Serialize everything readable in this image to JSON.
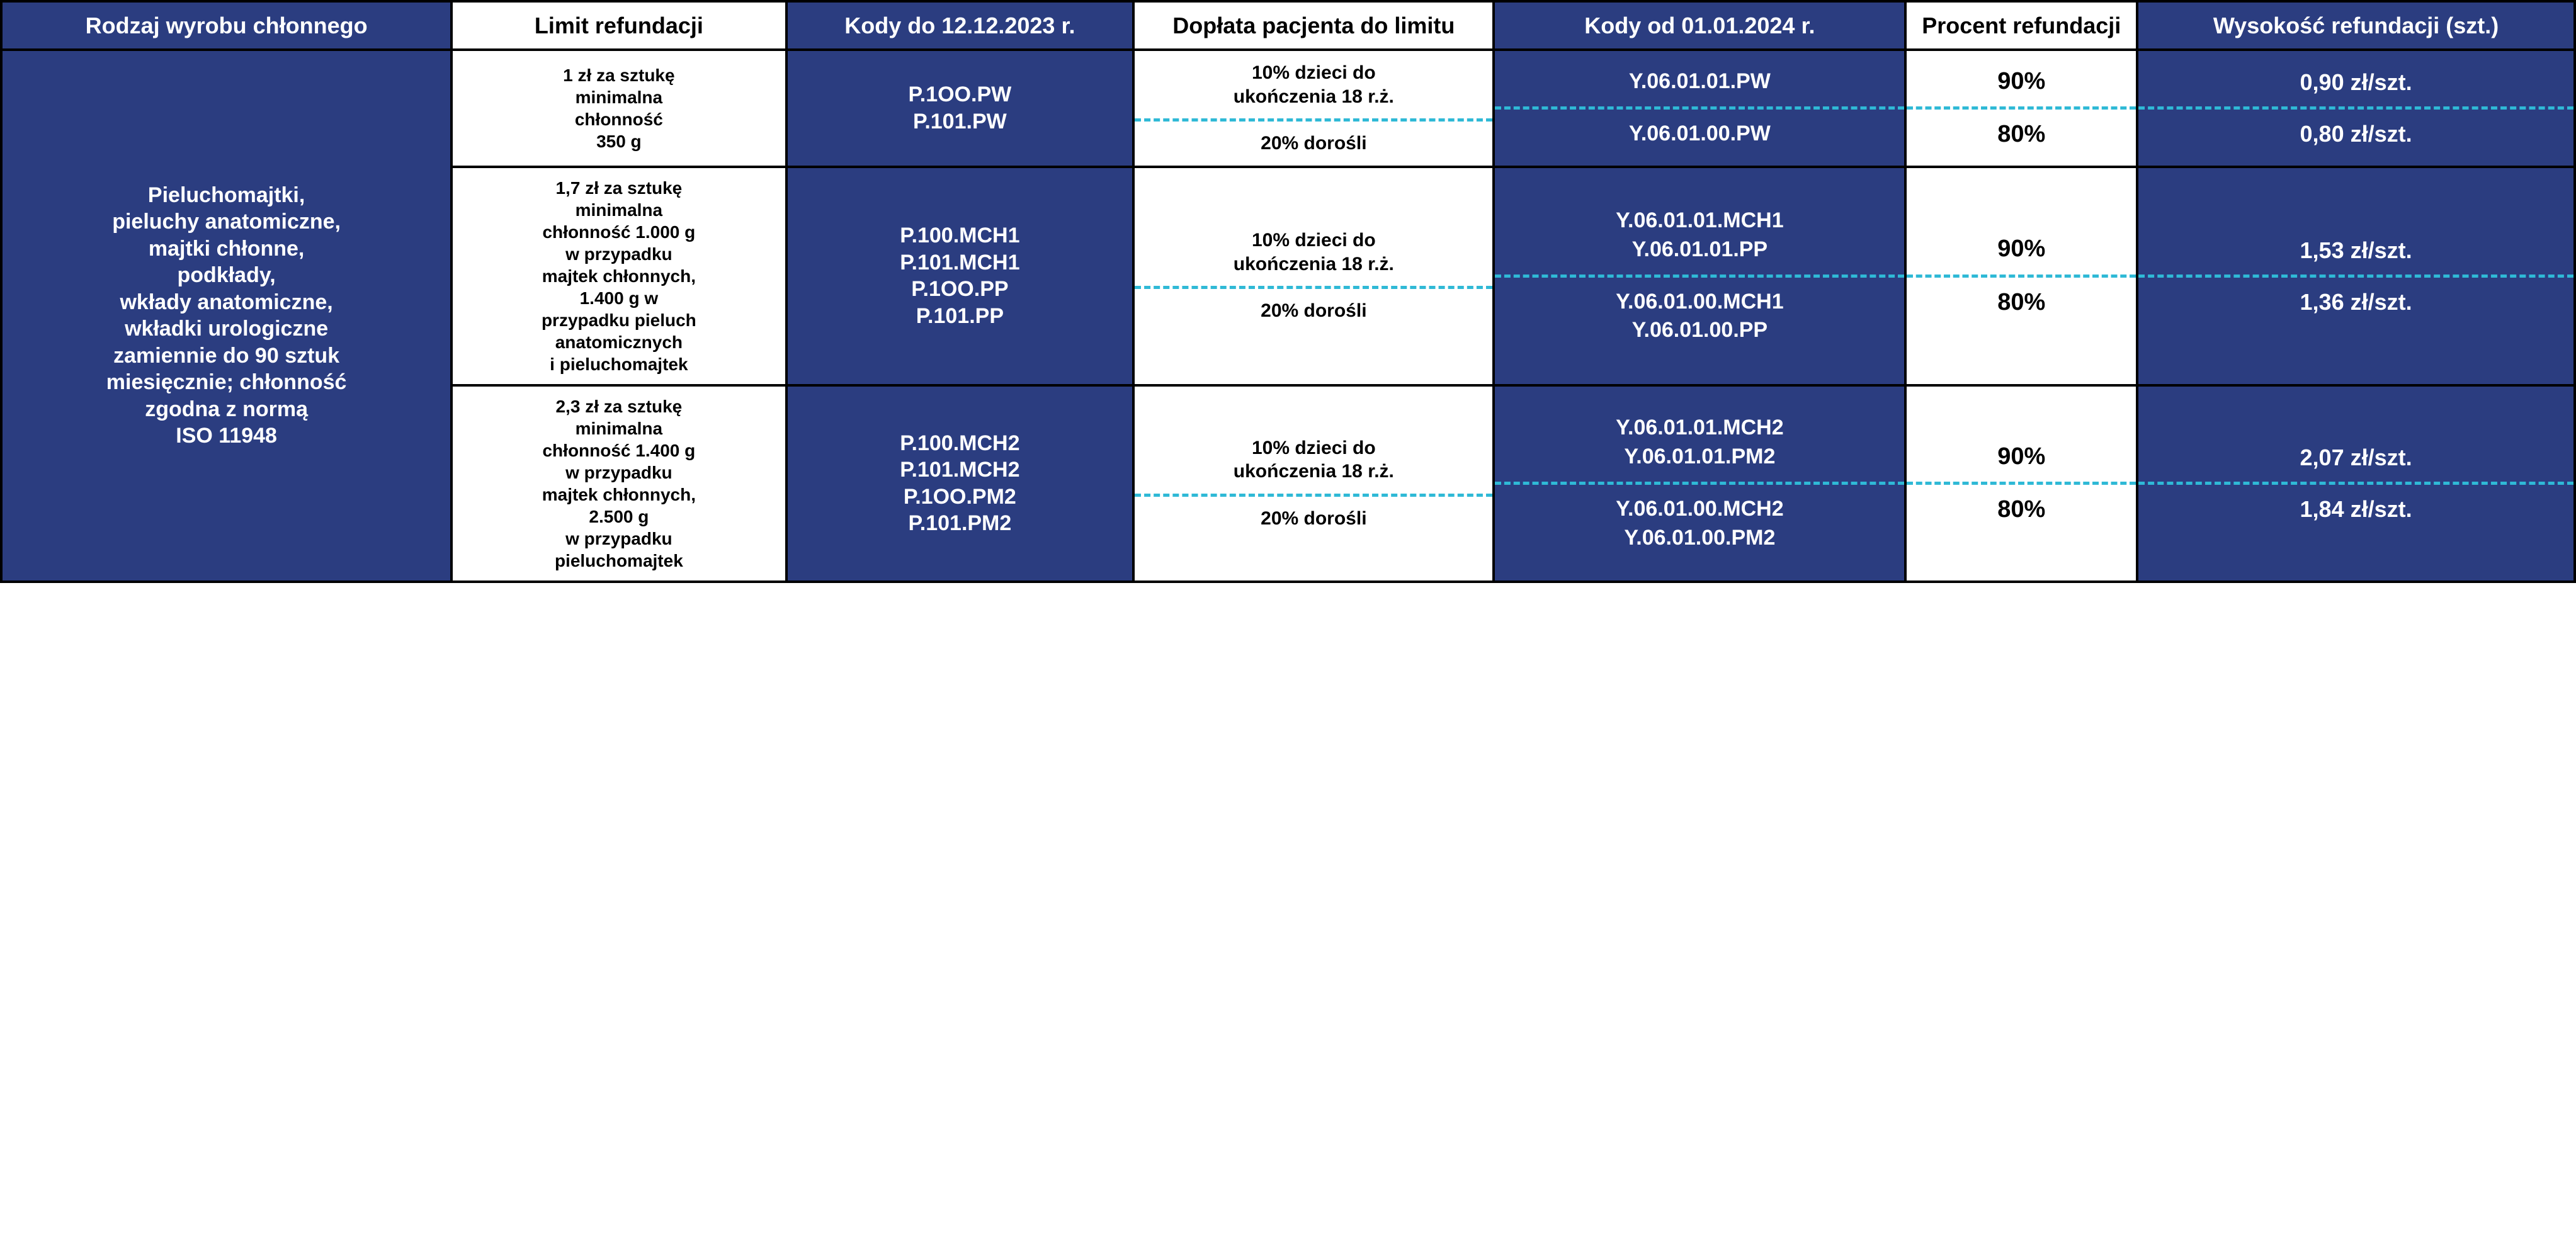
{
  "colors": {
    "blue": "#2b3d80",
    "cyan": "#2fb9d6",
    "black": "#000000",
    "white": "#ffffff"
  },
  "columns": {
    "c1": "Rodzaj wyrobu chłonnego",
    "c2": "Limit refundacji",
    "c3": "Kody do 12.12.2023 r.",
    "c4": "Dopłata pacjenta do limitu",
    "c5": "Kody od 01.01.2024 r.",
    "c6": "Procent refundacji",
    "c7": "Wysokość refundacji (szt.)"
  },
  "rowLabel": "Pieluchomajtki,\npieluchy anatomiczne,\nmajtki chłonne,\npodkłady,\nwkłady anatomiczne,\nwkładki urologiczne\nzamiennie do 90 sztuk\nmiesięcznie; chłonność\nzgodna z normą\nISO 11948",
  "groups": [
    {
      "limit": "1 zł za sztukę\nminimalna\nchłonność\n350 g",
      "oldCodes": "P.1OO.PW\nP.101.PW",
      "rows": [
        {
          "doplata": "10% dzieci do\nukończenia 18 r.ż.",
          "newCodes": "Y.06.01.01.PW",
          "pct": "90%",
          "amt": "0,90 zł/szt."
        },
        {
          "doplata": "20% dorośli",
          "newCodes": "Y.06.01.00.PW",
          "pct": "80%",
          "amt": "0,80 zł/szt."
        }
      ]
    },
    {
      "limit": "1,7 zł za sztukę\nminimalna\nchłonność 1.000 g\nw przypadku\nmajtek chłonnych,\n1.400 g w\nprzypadku pieluch\nanatomicznych\ni pieluchomajtek",
      "oldCodes": "P.100.MCH1\nP.101.MCH1\nP.1OO.PP\nP.101.PP",
      "rows": [
        {
          "doplata": "10% dzieci do\nukończenia 18 r.ż.",
          "newCodes": "Y.06.01.01.MCH1\nY.06.01.01.PP",
          "pct": "90%",
          "amt": "1,53 zł/szt."
        },
        {
          "doplata": "20% dorośli",
          "newCodes": "Y.06.01.00.MCH1\nY.06.01.00.PP",
          "pct": "80%",
          "amt": "1,36 zł/szt."
        }
      ]
    },
    {
      "limit": "2,3 zł za sztukę\nminimalna\nchłonność 1.400 g\nw przypadku\nmajtek chłonnych,\n2.500 g\nw przypadku\npieluchomajtek",
      "oldCodes": "P.100.MCH2\nP.101.MCH2\nP.1OO.PM2\nP.101.PM2",
      "rows": [
        {
          "doplata": "10% dzieci do\nukończenia 18 r.ż.",
          "newCodes": "Y.06.01.01.MCH2\nY.06.01.01.PM2",
          "pct": "90%",
          "amt": "2,07 zł/szt."
        },
        {
          "doplata": "20% dorośli",
          "newCodes": "Y.06.01.00.MCH2\nY.06.01.00.PM2",
          "pct": "80%",
          "amt": "1,84 zł/szt."
        }
      ]
    }
  ],
  "colWidths": [
    "17.5%",
    "13%",
    "13.5%",
    "14%",
    "16%",
    "9%",
    "17%"
  ]
}
